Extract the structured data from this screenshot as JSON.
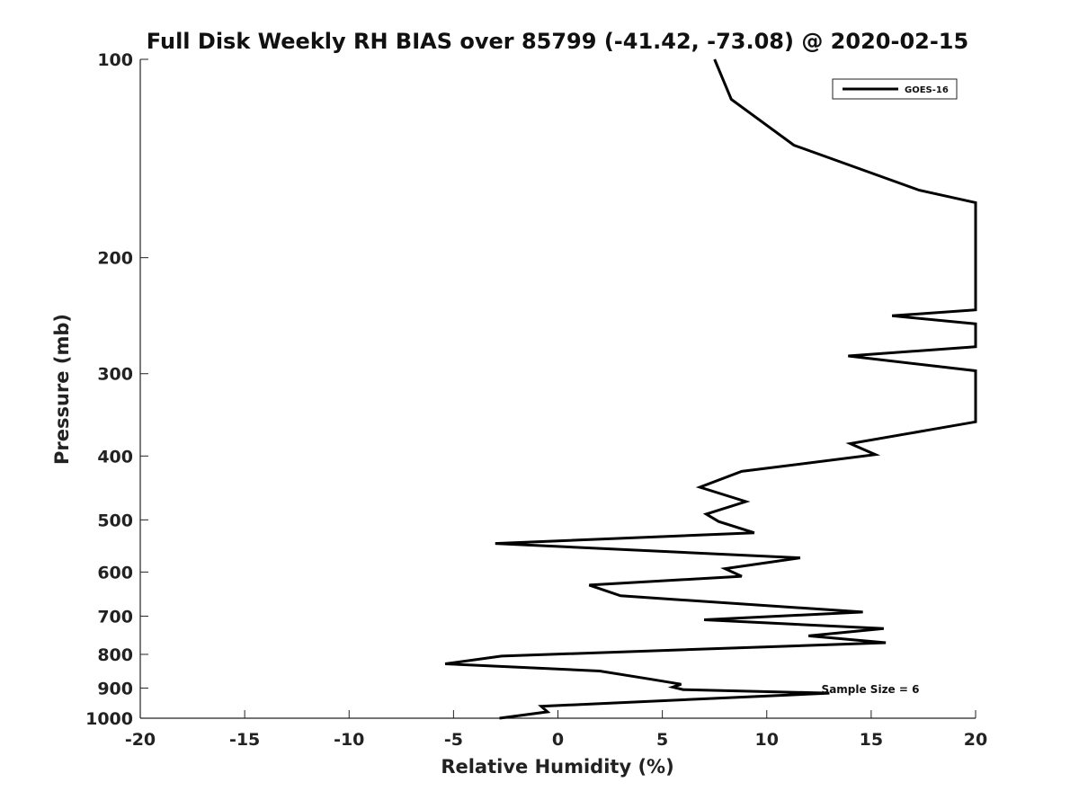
{
  "chart_data": {
    "type": "line",
    "title": "Full Disk Weekly RH BIAS over 85799 (-41.42, -73.08) @ 2020-02-15",
    "xlabel": "Relative Humidity (%)",
    "ylabel": "Pressure (mb)",
    "xlim": [
      -20,
      20
    ],
    "ylim": [
      100,
      1000
    ],
    "y_scale": "log",
    "y_reversed": true,
    "x_ticks": [
      -20,
      -15,
      -10,
      -5,
      0,
      5,
      10,
      15,
      20
    ],
    "x_tick_labels": [
      "-20",
      "-15",
      "-10",
      "-5",
      "0",
      "5",
      "10",
      "15",
      "20"
    ],
    "y_ticks": [
      100,
      200,
      300,
      400,
      500,
      600,
      700,
      800,
      900,
      1000
    ],
    "y_tick_labels": [
      "100",
      "200",
      "300",
      "400",
      "500",
      "600",
      "700",
      "800",
      "900",
      "1000"
    ],
    "grid": false,
    "legend_position": "top-right",
    "color": "#000000",
    "series": [
      {
        "name": "GOES-16",
        "points": [
          [
            7.5,
            100
          ],
          [
            8.3,
            115
          ],
          [
            11.3,
            135
          ],
          [
            17.3,
            158
          ],
          [
            20.0,
            165
          ],
          [
            20.0,
            240
          ],
          [
            16.0,
            245
          ],
          [
            20.0,
            252
          ],
          [
            20.0,
            273
          ],
          [
            13.9,
            282
          ],
          [
            20.0,
            297
          ],
          [
            20.0,
            355
          ],
          [
            17.8,
            365
          ],
          [
            14.0,
            383
          ],
          [
            15.2,
            398
          ],
          [
            8.8,
            422
          ],
          [
            6.8,
            446
          ],
          [
            9.0,
            469
          ],
          [
            7.1,
            490
          ],
          [
            7.7,
            503
          ],
          [
            9.4,
            523
          ],
          [
            -3.0,
            543
          ],
          [
            11.6,
            571
          ],
          [
            8.0,
            593
          ],
          [
            8.8,
            609
          ],
          [
            1.5,
            628
          ],
          [
            3.0,
            652
          ],
          [
            14.6,
            690
          ],
          [
            7.0,
            709
          ],
          [
            15.6,
            731
          ],
          [
            12.0,
            750
          ],
          [
            15.7,
            768
          ],
          [
            -2.7,
            805
          ],
          [
            -5.4,
            827
          ],
          [
            2.0,
            848
          ],
          [
            4.5,
            873
          ],
          [
            5.9,
            888
          ],
          [
            5.5,
            897
          ],
          [
            6.0,
            905
          ],
          [
            13.0,
            916
          ],
          [
            -0.8,
            959
          ],
          [
            -0.5,
            978
          ],
          [
            -2.8,
            1000
          ]
        ]
      }
    ],
    "annotation": "Sample Size = 6"
  }
}
